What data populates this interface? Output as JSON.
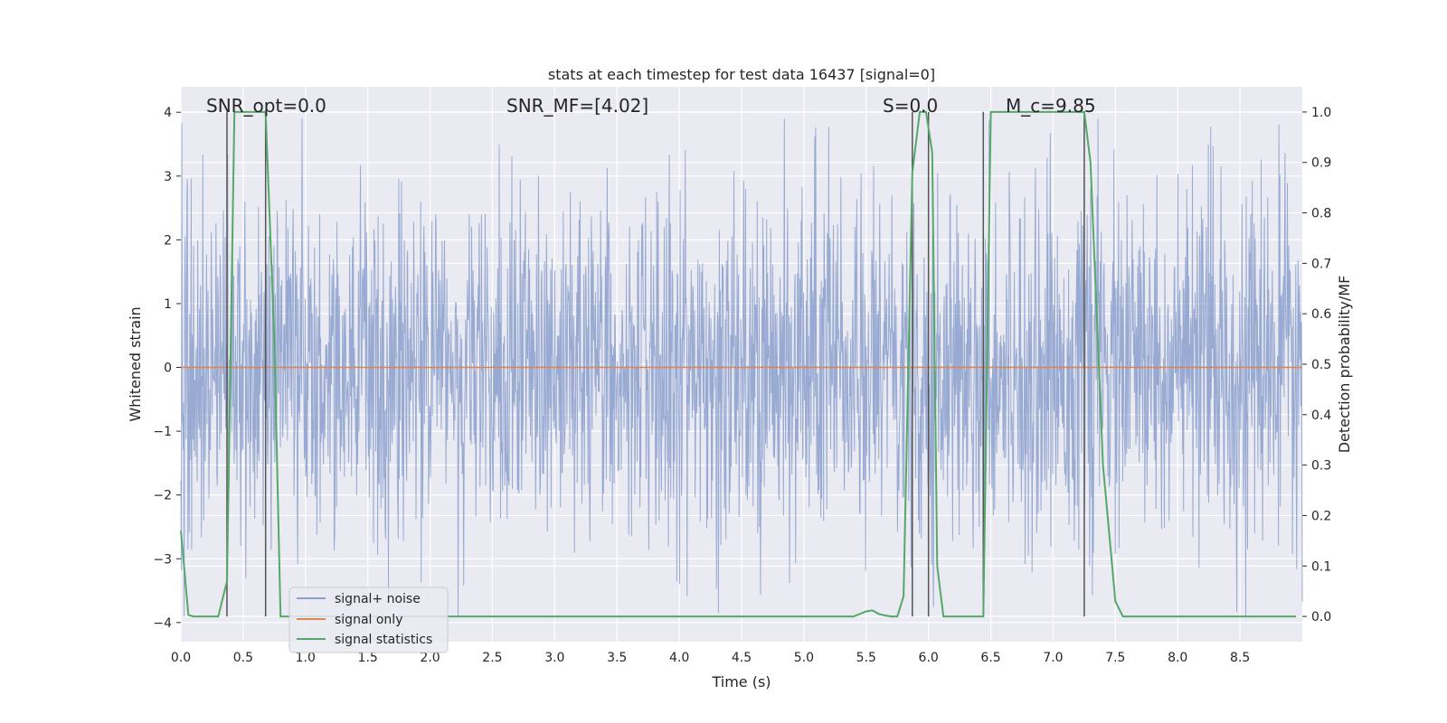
{
  "chart_data": {
    "type": "line",
    "title": "stats at each timestep for test data 16437 [signal=0]",
    "xlabel": "Time (s)",
    "ylabel": "Whitened strain",
    "y2label": "Detection probability/MF",
    "xlim": [
      0.0,
      9.0
    ],
    "ylim": [
      -4.3,
      4.4
    ],
    "y2lim": [
      -0.05,
      1.05
    ],
    "x_ticks": [
      0.0,
      0.5,
      1.0,
      1.5,
      2.0,
      2.5,
      3.0,
      3.5,
      4.0,
      4.5,
      5.0,
      5.5,
      6.0,
      6.5,
      7.0,
      7.5,
      8.0,
      8.5
    ],
    "x_tick_labels": [
      "0.0",
      "0.5",
      "1.0",
      "1.5",
      "2.0",
      "2.5",
      "3.0",
      "3.5",
      "4.0",
      "4.5",
      "5.0",
      "5.5",
      "6.0",
      "6.5",
      "7.0",
      "7.5",
      "8.0",
      "8.5"
    ],
    "y_ticks": [
      4,
      3,
      2,
      1,
      0,
      -1,
      -2,
      -3,
      -4
    ],
    "y_tick_labels": [
      "4",
      "3",
      "2",
      "1",
      "0",
      "−1",
      "−2",
      "−3",
      "−4"
    ],
    "y2_ticks": [
      1.0,
      0.9,
      0.8,
      0.7,
      0.6,
      0.5,
      0.4,
      0.3,
      0.2,
      0.1,
      0.0
    ],
    "y2_tick_labels": [
      "1.0",
      "0.9",
      "0.8",
      "0.7",
      "0.6",
      "0.5",
      "0.4",
      "0.3",
      "0.2",
      "0.1",
      "0.0"
    ],
    "grid": true,
    "legend_placement": "lower-left",
    "annotations": [
      {
        "text": "SNR_opt=0.0",
        "x": 0.2,
        "y": 4.1
      },
      {
        "text": "SNR_MF=[4.02]",
        "x": 2.6,
        "y": 4.1
      },
      {
        "text": "S=0.0",
        "x": 5.6,
        "y": 4.1
      },
      {
        "text": "M_c=9.85",
        "x": 6.6,
        "y": 4.1
      }
    ],
    "series": [
      {
        "name": "signal+ noise",
        "color": "#8a9fcc",
        "style": "dense noise, amplitude roughly ±1.5 typical, peaks to ±3.9",
        "typical_amplitude": 1.5,
        "peak_amplitude": 3.9
      },
      {
        "name": "signal only",
        "color": "#dd8452",
        "values_constant": 0.0
      },
      {
        "name": "signal statistics",
        "color": "#55a868",
        "axis": "right",
        "x": [
          0.0,
          0.06,
          0.1,
          0.2,
          0.3,
          0.37,
          0.43,
          0.5,
          0.6,
          0.68,
          0.75,
          0.8,
          1.0,
          2.0,
          3.0,
          4.0,
          5.0,
          5.4,
          5.5,
          5.55,
          5.6,
          5.65,
          5.7,
          5.75,
          5.8,
          5.87,
          5.93,
          5.98,
          6.03,
          6.07,
          6.12,
          6.2,
          6.3,
          6.44,
          6.5,
          6.6,
          7.0,
          7.25,
          7.3,
          7.4,
          7.5,
          7.56,
          8.0,
          8.5,
          8.95
        ],
        "y": [
          0.17,
          0.003,
          0.0,
          0.0,
          0.0,
          0.07,
          1.0,
          1.0,
          1.0,
          1.0,
          0.55,
          0.0,
          0.0,
          0.0,
          0.0,
          0.0,
          0.0,
          0.0,
          0.01,
          0.012,
          0.005,
          0.002,
          0.0,
          0.0,
          0.04,
          0.88,
          1.0,
          1.0,
          0.92,
          0.1,
          0.0,
          0.0,
          0.0,
          0.0,
          1.0,
          1.0,
          1.0,
          1.0,
          0.9,
          0.3,
          0.03,
          0.0,
          0.0,
          0.0,
          0.0
        ]
      }
    ],
    "vertical_lines_x": [
      0.37,
      0.68,
      5.87,
      6.0,
      6.44,
      7.25
    ],
    "vertical_lines_color": "#555555"
  }
}
